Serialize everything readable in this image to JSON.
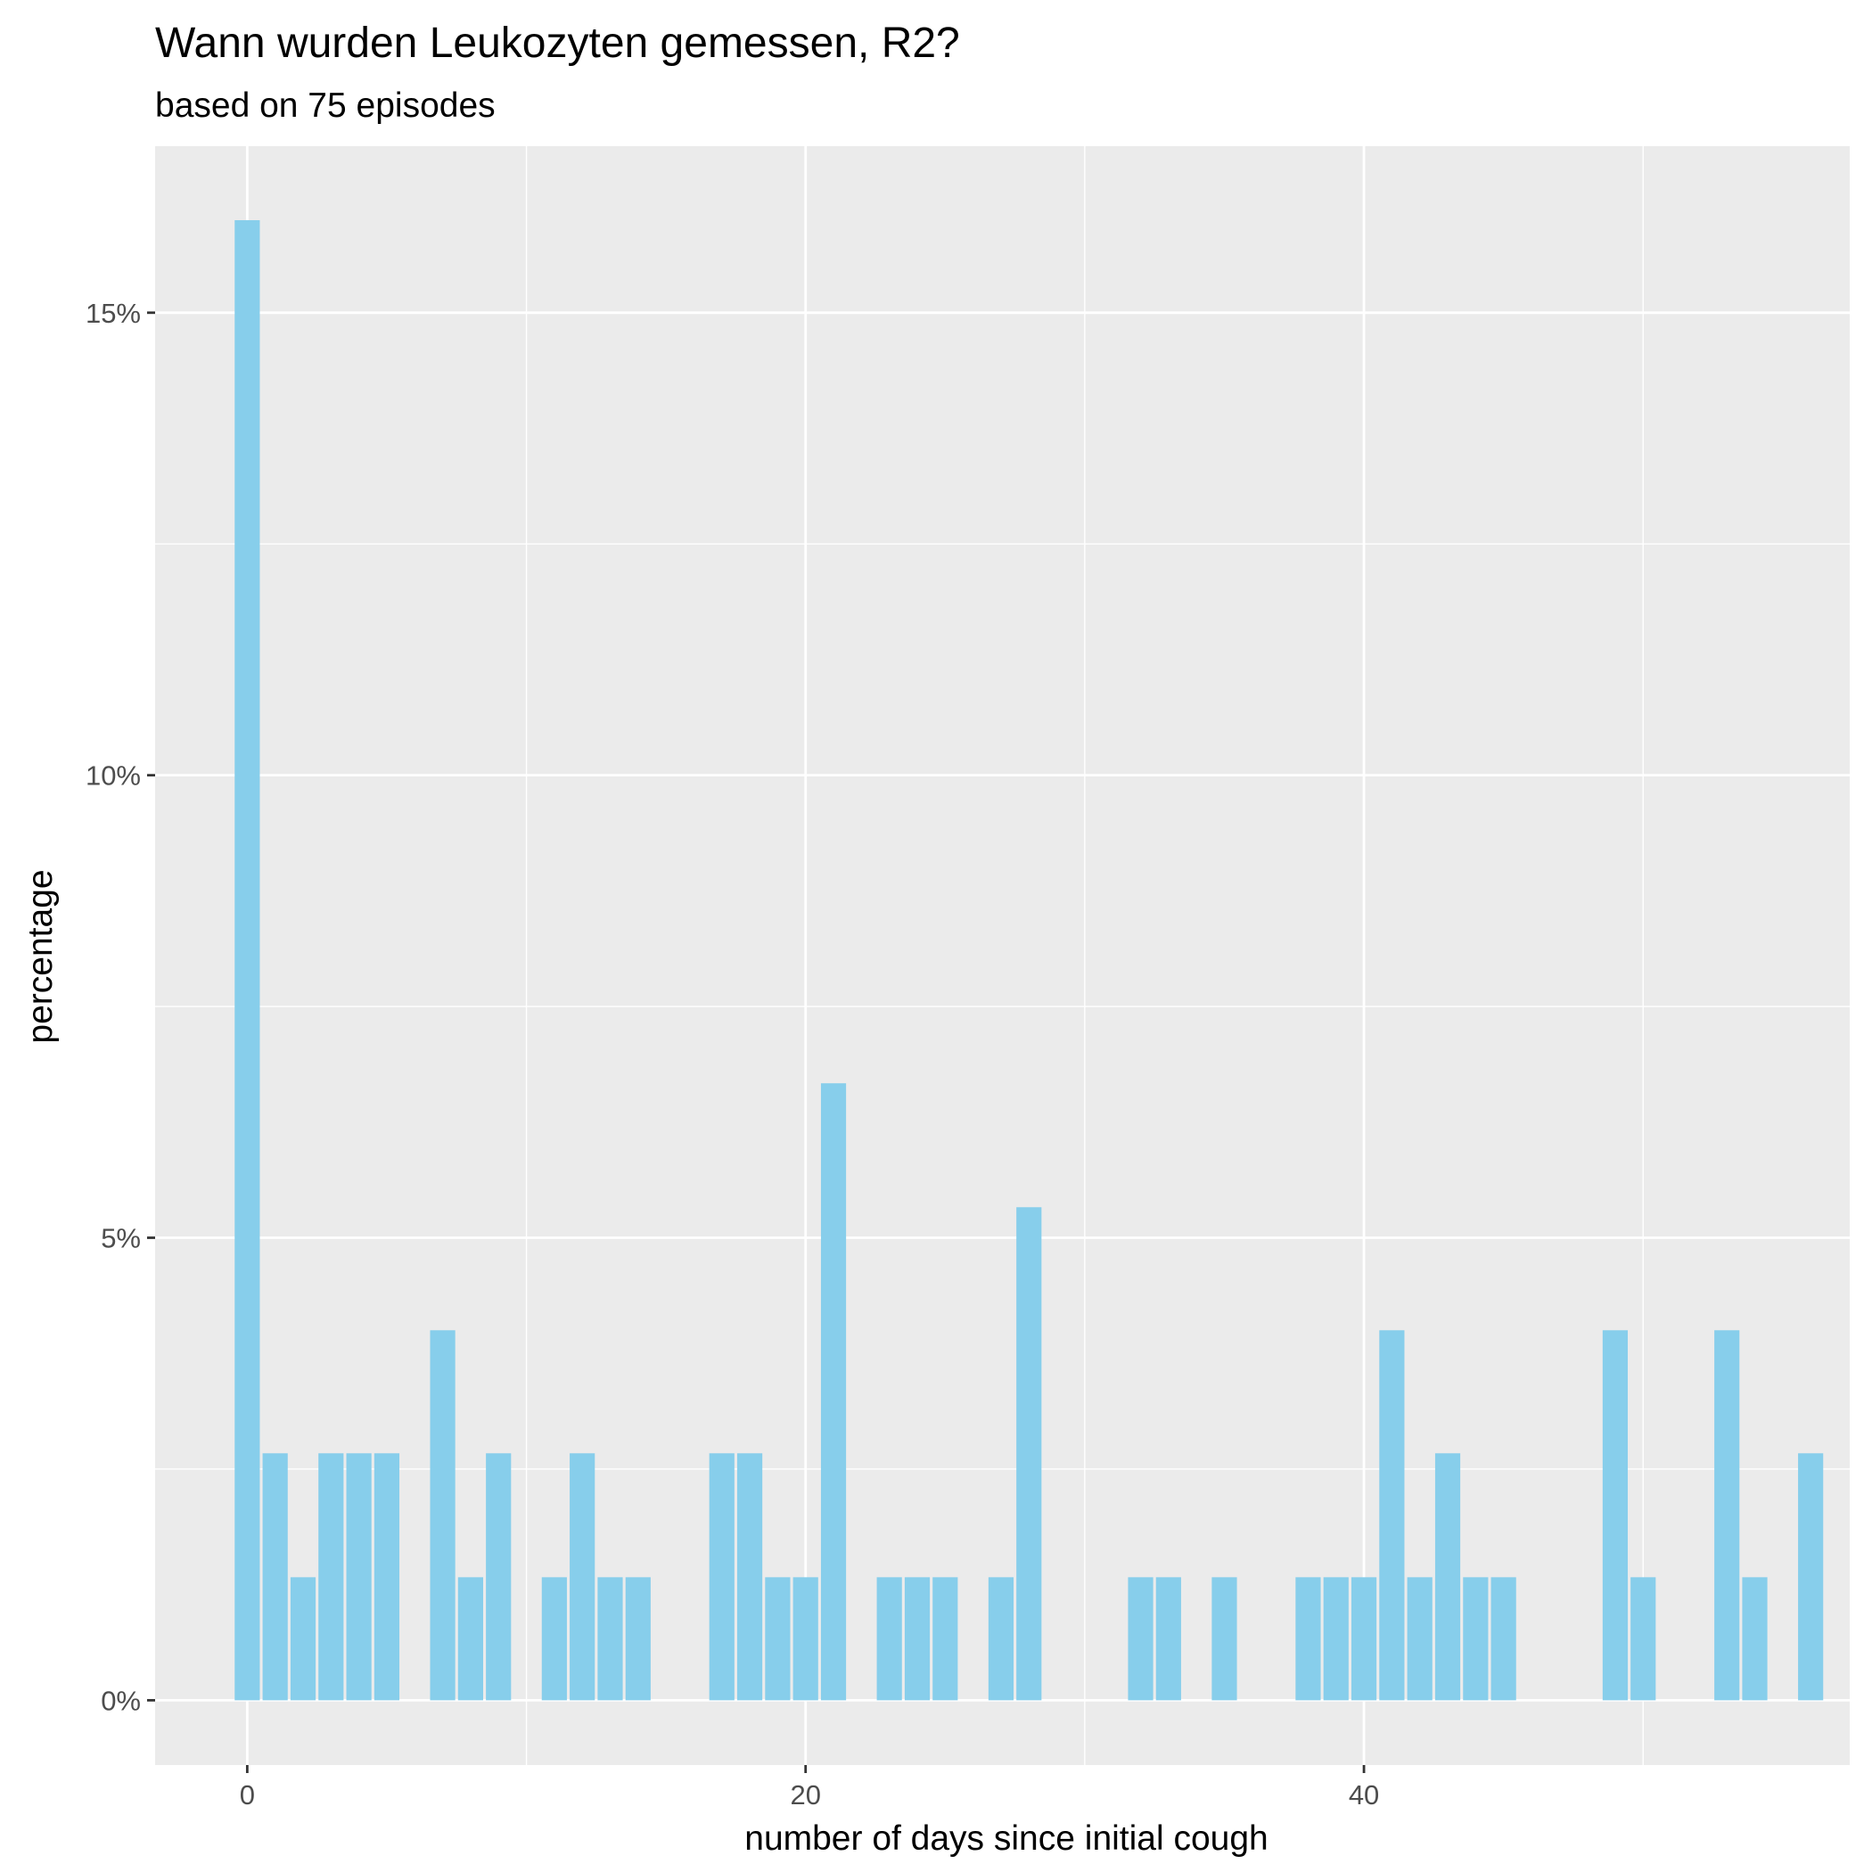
{
  "chart_data": {
    "type": "bar",
    "title": "Wann wurden Leukozyten gemessen, R2?",
    "subtitle": "based on 75 episodes",
    "xlabel": "number of days since initial cough",
    "ylabel": "percentage",
    "xlim": [
      -3.3,
      57.4
    ],
    "ylim": [
      -0.7,
      16.8
    ],
    "x_ticks": [
      0,
      20,
      40
    ],
    "x_tick_labels": [
      "0",
      "20",
      "40"
    ],
    "y_ticks": [
      0,
      5,
      10,
      15
    ],
    "y_tick_labels": [
      "0%",
      "5%",
      "10%",
      "15%"
    ],
    "bar_color": "#87ceeb",
    "panel_color": "#ebebeb",
    "grid_color": "#ffffff",
    "x": [
      0,
      1,
      2,
      3,
      4,
      5,
      7,
      8,
      9,
      11,
      12,
      13,
      14,
      17,
      18,
      19,
      20,
      21,
      23,
      24,
      25,
      27,
      28,
      32,
      33,
      35,
      38,
      39,
      40,
      41,
      42,
      43,
      44,
      45,
      49,
      50,
      53,
      54,
      56
    ],
    "values": [
      16.0,
      2.67,
      1.33,
      2.67,
      2.67,
      2.67,
      4.0,
      1.33,
      2.67,
      1.33,
      2.67,
      1.33,
      1.33,
      2.67,
      2.67,
      1.33,
      1.33,
      6.67,
      1.33,
      1.33,
      1.33,
      1.33,
      5.33,
      1.33,
      1.33,
      1.33,
      1.33,
      1.33,
      1.33,
      4.0,
      1.33,
      2.67,
      1.33,
      1.33,
      4.0,
      1.33,
      4.0,
      1.33,
      2.67
    ]
  }
}
